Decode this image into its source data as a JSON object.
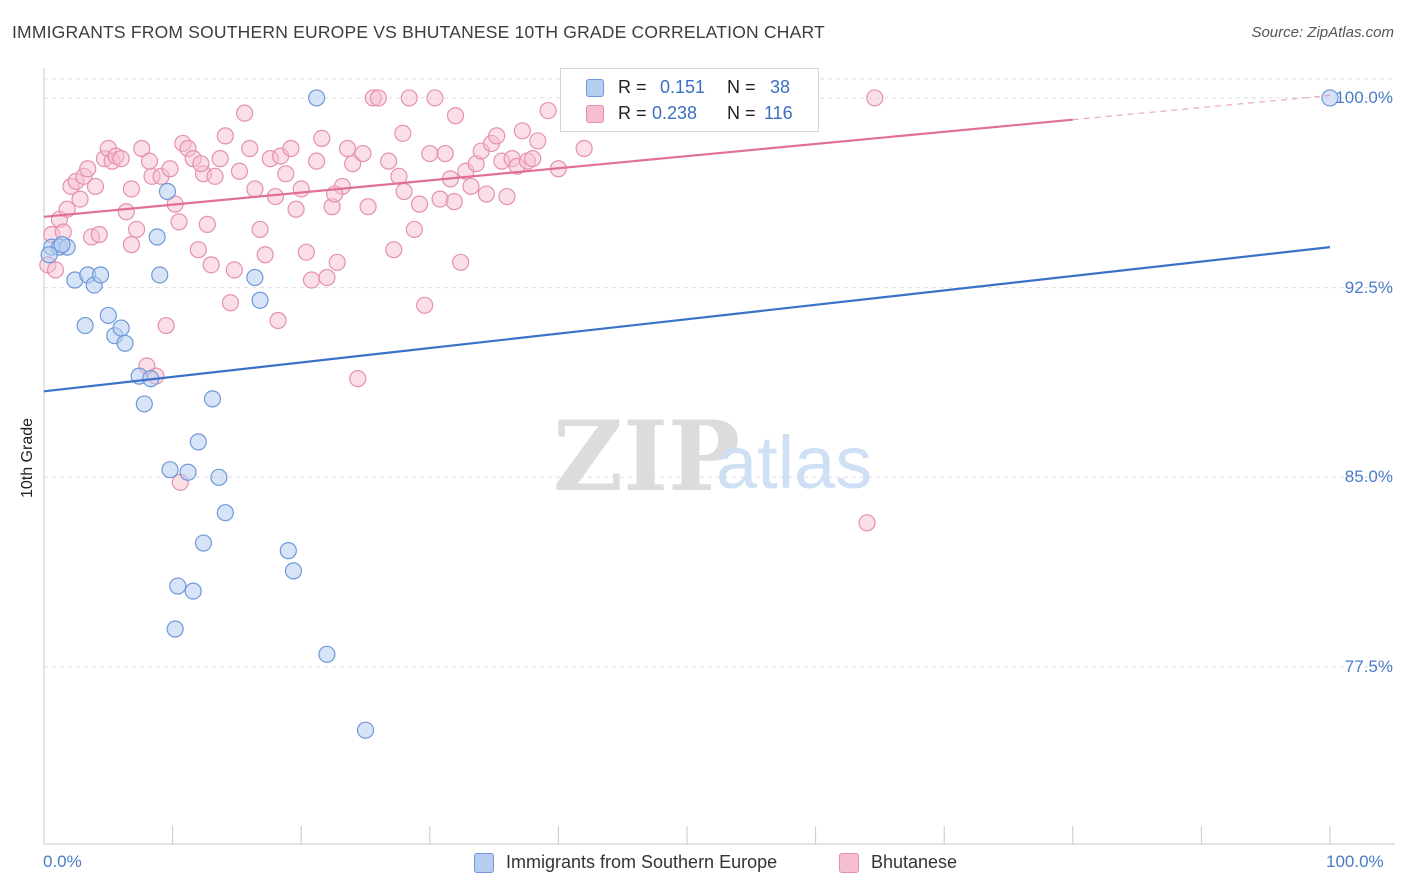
{
  "title": "IMMIGRANTS FROM SOUTHERN EUROPE VS BHUTANESE 10TH GRADE CORRELATION CHART",
  "source": "Source: ZipAtlas.com",
  "watermark": {
    "zip": "ZIP",
    "atlas": "atlas"
  },
  "colors": {
    "blue": "#3a72c8",
    "blue_fill": "#b7cdf0",
    "pink": "#e07098",
    "pink_fill": "#f5bfd0",
    "tick_text": "#4a7cc9",
    "grid": "#dddddd"
  },
  "legend": {
    "rows": [
      {
        "r_label": "R = ",
        "r_value": "0.151",
        "n_label": "N = ",
        "n_value": "38"
      },
      {
        "r_label": "R = ",
        "r_value": "0.238",
        "n_label": "N = ",
        "n_value": "116"
      }
    ]
  },
  "chart_data": {
    "type": "scatter",
    "title": "IMMIGRANTS FROM SOUTHERN EUROPE VS BHUTANESE 10TH GRADE CORRELATION CHART",
    "xlabel": "",
    "ylabel": "10th Grade",
    "xlim": [
      0,
      100
    ],
    "ylim": [
      70.5,
      101.5
    ],
    "x_tick_labels": [
      "0.0%",
      "100.0%"
    ],
    "y_ticks": [
      77.5,
      85.0,
      92.5,
      100.0
    ],
    "y_tick_labels": [
      "77.5%",
      "85.0%",
      "92.5%",
      "100.0%"
    ],
    "grid": true,
    "legend_position": "top-center",
    "series": [
      {
        "name": "Immigrants from Southern Europe",
        "color": "#3a72c8",
        "trend": {
          "x": [
            0,
            100
          ],
          "y": [
            88.4,
            94.1
          ],
          "solid_to": 100
        },
        "points": [
          [
            0.6,
            94.1
          ],
          [
            1.2,
            94.1
          ],
          [
            1.8,
            94.1
          ],
          [
            2.4,
            92.8
          ],
          [
            3.2,
            91.0
          ],
          [
            3.4,
            93.0
          ],
          [
            3.9,
            92.6
          ],
          [
            4.4,
            93.0
          ],
          [
            5.0,
            91.4
          ],
          [
            5.5,
            90.6
          ],
          [
            6.0,
            90.9
          ],
          [
            6.3,
            90.3
          ],
          [
            7.4,
            89.0
          ],
          [
            7.8,
            87.9
          ],
          [
            8.3,
            88.9
          ],
          [
            8.8,
            94.5
          ],
          [
            9.0,
            93.0
          ],
          [
            9.6,
            96.3
          ],
          [
            9.8,
            85.3
          ],
          [
            10.2,
            79.0
          ],
          [
            10.4,
            80.7
          ],
          [
            11.2,
            85.2
          ],
          [
            11.6,
            80.5
          ],
          [
            12.0,
            86.4
          ],
          [
            12.4,
            82.4
          ],
          [
            13.1,
            88.1
          ],
          [
            13.6,
            85.0
          ],
          [
            14.1,
            83.6
          ],
          [
            16.4,
            92.9
          ],
          [
            16.8,
            92.0
          ],
          [
            19.0,
            82.1
          ],
          [
            19.4,
            81.3
          ],
          [
            21.2,
            100.0
          ],
          [
            22.0,
            78.0
          ],
          [
            25.0,
            75.0
          ],
          [
            100.0,
            100.0
          ],
          [
            0.4,
            93.8
          ],
          [
            1.4,
            94.2
          ]
        ]
      },
      {
        "name": "Bhutanese",
        "color": "#e07098",
        "trend": {
          "x": [
            0,
            100
          ],
          "y": [
            95.3,
            100.1
          ],
          "solid_to": 80
        },
        "points": [
          [
            0.3,
            93.4
          ],
          [
            0.6,
            94.6
          ],
          [
            0.9,
            93.2
          ],
          [
            1.2,
            95.2
          ],
          [
            1.5,
            94.7
          ],
          [
            1.8,
            95.6
          ],
          [
            2.1,
            96.5
          ],
          [
            2.5,
            96.7
          ],
          [
            2.8,
            96.0
          ],
          [
            3.1,
            96.9
          ],
          [
            3.4,
            97.2
          ],
          [
            3.7,
            94.5
          ],
          [
            4.0,
            96.5
          ],
          [
            4.3,
            94.6
          ],
          [
            4.7,
            97.6
          ],
          [
            5.0,
            98.0
          ],
          [
            5.3,
            97.5
          ],
          [
            5.6,
            97.7
          ],
          [
            6.0,
            97.6
          ],
          [
            6.4,
            95.5
          ],
          [
            6.8,
            96.4
          ],
          [
            7.2,
            94.8
          ],
          [
            7.6,
            98.0
          ],
          [
            8.0,
            89.4
          ],
          [
            8.4,
            96.9
          ],
          [
            8.7,
            89.0
          ],
          [
            9.1,
            96.9
          ],
          [
            9.5,
            91.0
          ],
          [
            9.8,
            97.2
          ],
          [
            10.2,
            95.8
          ],
          [
            10.5,
            95.1
          ],
          [
            10.8,
            98.2
          ],
          [
            11.2,
            98.0
          ],
          [
            11.6,
            97.6
          ],
          [
            12.0,
            94.0
          ],
          [
            12.4,
            97.0
          ],
          [
            12.7,
            95.0
          ],
          [
            13.0,
            93.4
          ],
          [
            13.3,
            96.9
          ],
          [
            13.7,
            97.6
          ],
          [
            14.1,
            98.5
          ],
          [
            14.5,
            91.9
          ],
          [
            14.8,
            93.2
          ],
          [
            15.2,
            97.1
          ],
          [
            15.6,
            99.4
          ],
          [
            16.0,
            98.0
          ],
          [
            16.4,
            96.4
          ],
          [
            16.8,
            94.8
          ],
          [
            17.2,
            93.8
          ],
          [
            17.6,
            97.6
          ],
          [
            18.0,
            96.1
          ],
          [
            18.4,
            97.7
          ],
          [
            18.8,
            97.0
          ],
          [
            19.2,
            98.0
          ],
          [
            19.6,
            95.6
          ],
          [
            20.0,
            96.4
          ],
          [
            20.4,
            93.9
          ],
          [
            20.8,
            92.8
          ],
          [
            21.2,
            97.5
          ],
          [
            21.6,
            98.4
          ],
          [
            22.0,
            92.9
          ],
          [
            22.4,
            95.7
          ],
          [
            22.8,
            93.5
          ],
          [
            23.2,
            96.5
          ],
          [
            23.6,
            98.0
          ],
          [
            24.0,
            97.4
          ],
          [
            24.4,
            88.9
          ],
          [
            24.8,
            97.8
          ],
          [
            25.2,
            95.7
          ],
          [
            25.6,
            100.0
          ],
          [
            26.0,
            100.0
          ],
          [
            26.8,
            97.5
          ],
          [
            27.2,
            94.0
          ],
          [
            27.6,
            96.9
          ],
          [
            28.0,
            96.3
          ],
          [
            28.4,
            100.0
          ],
          [
            28.8,
            94.8
          ],
          [
            29.2,
            95.8
          ],
          [
            29.6,
            91.8
          ],
          [
            30.0,
            97.8
          ],
          [
            30.4,
            100.0
          ],
          [
            30.8,
            96.0
          ],
          [
            31.2,
            97.8
          ],
          [
            31.6,
            96.8
          ],
          [
            32.0,
            99.3
          ],
          [
            32.4,
            93.5
          ],
          [
            32.8,
            97.1
          ],
          [
            33.2,
            96.5
          ],
          [
            33.6,
            97.4
          ],
          [
            34.0,
            97.9
          ],
          [
            34.4,
            96.2
          ],
          [
            34.8,
            98.2
          ],
          [
            35.2,
            98.5
          ],
          [
            35.6,
            97.5
          ],
          [
            36.0,
            96.1
          ],
          [
            36.4,
            97.6
          ],
          [
            36.8,
            97.3
          ],
          [
            37.2,
            98.7
          ],
          [
            37.6,
            97.5
          ],
          [
            38.0,
            97.6
          ],
          [
            38.4,
            98.3
          ],
          [
            39.2,
            99.5
          ],
          [
            40.0,
            97.2
          ],
          [
            42.0,
            98.0
          ],
          [
            43.2,
            100.0
          ],
          [
            46.4,
            99.8
          ],
          [
            64.0,
            83.2
          ],
          [
            64.6,
            100.0
          ],
          [
            10.6,
            84.8
          ],
          [
            8.2,
            97.5
          ],
          [
            6.8,
            94.2
          ],
          [
            12.2,
            97.4
          ],
          [
            18.2,
            91.2
          ],
          [
            22.6,
            96.2
          ],
          [
            27.9,
            98.6
          ],
          [
            31.9,
            95.9
          ]
        ]
      }
    ]
  },
  "bottom_legend": [
    {
      "label": "Immigrants from Southern Europe"
    },
    {
      "label": "Bhutanese"
    }
  ]
}
